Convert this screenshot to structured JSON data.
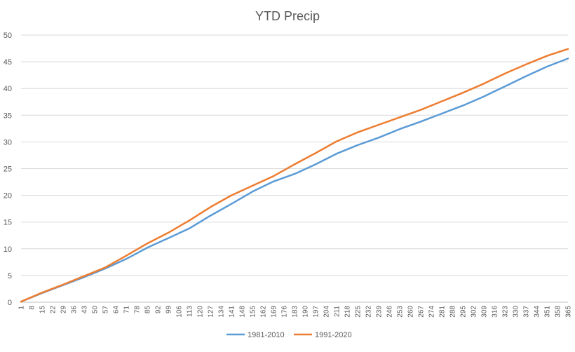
{
  "chart_data": {
    "type": "line",
    "title": "YTD Precip",
    "xlabel": "",
    "ylabel": "",
    "ylim": [
      0,
      50
    ],
    "yticks": [
      0,
      5,
      10,
      15,
      20,
      25,
      30,
      35,
      40,
      45,
      50
    ],
    "xlim": [
      1,
      365
    ],
    "xticks": [
      1,
      8,
      15,
      22,
      29,
      36,
      43,
      50,
      57,
      64,
      71,
      78,
      85,
      92,
      99,
      106,
      113,
      120,
      127,
      134,
      141,
      148,
      155,
      162,
      169,
      176,
      183,
      190,
      197,
      204,
      211,
      218,
      225,
      232,
      239,
      246,
      253,
      260,
      267,
      274,
      281,
      288,
      295,
      302,
      309,
      316,
      323,
      330,
      337,
      344,
      351,
      358,
      365
    ],
    "grid": true,
    "legend_position": "bottom",
    "series": [
      {
        "name": "1981-2010",
        "color": "#5B9BD5",
        "x": [
          1,
          15,
          29,
          43,
          57,
          71,
          85,
          99,
          113,
          127,
          141,
          155,
          169,
          183,
          197,
          211,
          225,
          239,
          253,
          267,
          281,
          295,
          309,
          323,
          337,
          351,
          365
        ],
        "y": [
          0.1,
          1.7,
          3.2,
          4.7,
          6.3,
          8.1,
          10.2,
          12.0,
          13.8,
          16.2,
          18.4,
          20.7,
          22.6,
          24.0,
          25.8,
          27.8,
          29.4,
          30.8,
          32.4,
          33.8,
          35.3,
          36.8,
          38.5,
          40.4,
          42.3,
          44.1,
          45.6
        ]
      },
      {
        "name": "1991-2020",
        "color": "#ED7D31",
        "x": [
          1,
          15,
          29,
          43,
          57,
          71,
          85,
          99,
          113,
          127,
          141,
          155,
          169,
          183,
          197,
          211,
          225,
          239,
          253,
          267,
          281,
          295,
          309,
          323,
          337,
          351,
          365
        ],
        "y": [
          0.1,
          1.8,
          3.3,
          4.9,
          6.5,
          8.7,
          11.0,
          13.0,
          15.3,
          17.8,
          20.0,
          21.8,
          23.6,
          25.8,
          27.9,
          30.1,
          31.8,
          33.2,
          34.6,
          36.0,
          37.6,
          39.2,
          40.9,
          42.8,
          44.5,
          46.1,
          47.4
        ]
      }
    ]
  }
}
